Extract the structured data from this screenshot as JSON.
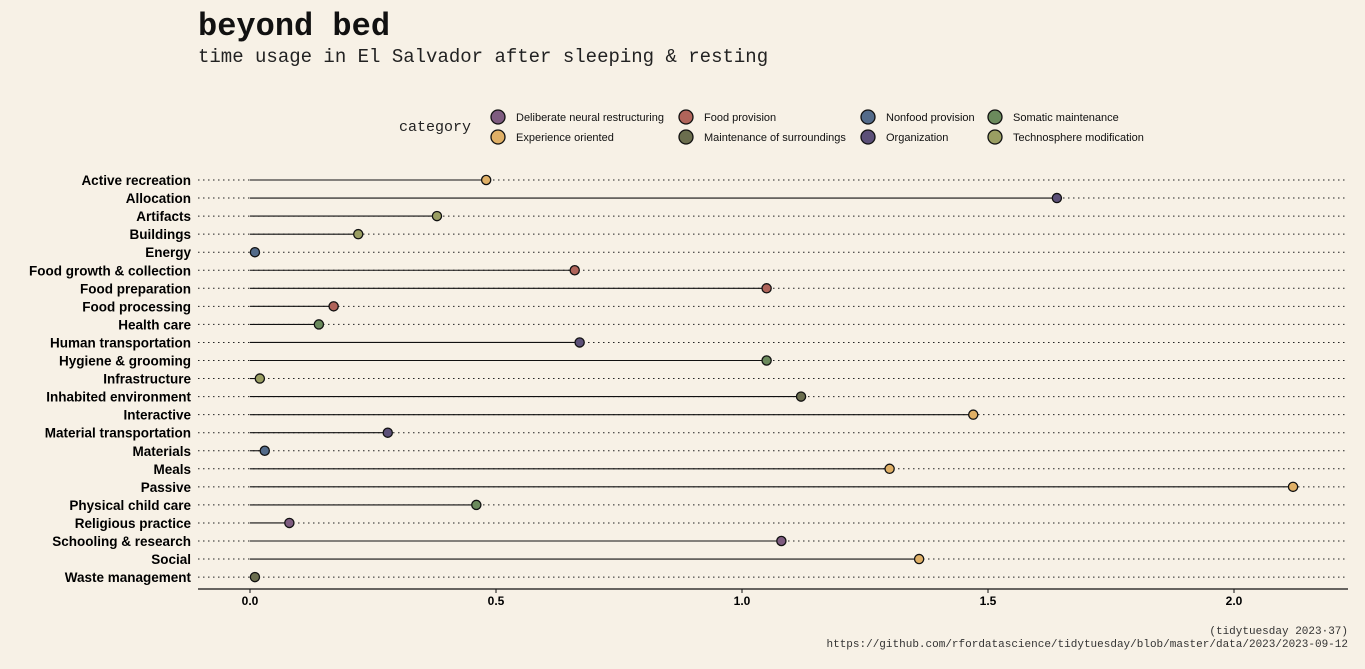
{
  "title": "beyond bed",
  "subtitle": "time usage in El Salvador after sleeping & resting",
  "caption": {
    "line1": "(tidytuesday 2023·37)",
    "line2": "https://github.com/rfordatascience/tidytuesday/blob/master/data/2023/2023-09-12"
  },
  "legend": {
    "title": "category",
    "items": [
      {
        "name": "Deliberate neural restructuring",
        "color": "#7e5c80"
      },
      {
        "name": "Food provision",
        "color": "#b0645a"
      },
      {
        "name": "Nonfood provision",
        "color": "#536b8a"
      },
      {
        "name": "Somatic maintenance",
        "color": "#6b8a5c"
      },
      {
        "name": "Experience oriented",
        "color": "#e0b066"
      },
      {
        "name": "Maintenance of surroundings",
        "color": "#6b6e4e"
      },
      {
        "name": "Organization",
        "color": "#5c5078"
      },
      {
        "name": "Technosphere modification",
        "color": "#9a9e62"
      }
    ]
  },
  "chart_data": {
    "type": "lollipop",
    "xlim": [
      -0.1,
      2.24
    ],
    "xticks": [
      0.0,
      0.5,
      1.0,
      1.5,
      2.0
    ],
    "xtick_labels": [
      "0.0",
      "0.5",
      "1.0",
      "1.5",
      "2.0"
    ],
    "grid": "dotted horizontal",
    "rows": [
      {
        "label": "Active recreation",
        "value": 0.48,
        "category": "Experience oriented"
      },
      {
        "label": "Allocation",
        "value": 1.64,
        "category": "Organization"
      },
      {
        "label": "Artifacts",
        "value": 0.38,
        "category": "Technosphere modification"
      },
      {
        "label": "Buildings",
        "value": 0.22,
        "category": "Technosphere modification"
      },
      {
        "label": "Energy",
        "value": 0.01,
        "category": "Nonfood provision"
      },
      {
        "label": "Food growth & collection",
        "value": 0.66,
        "category": "Food provision"
      },
      {
        "label": "Food preparation",
        "value": 1.05,
        "category": "Food provision"
      },
      {
        "label": "Food processing",
        "value": 0.17,
        "category": "Food provision"
      },
      {
        "label": "Health care",
        "value": 0.14,
        "category": "Somatic maintenance"
      },
      {
        "label": "Human transportation",
        "value": 0.67,
        "category": "Organization"
      },
      {
        "label": "Hygiene & grooming",
        "value": 1.05,
        "category": "Somatic maintenance"
      },
      {
        "label": "Infrastructure",
        "value": 0.02,
        "category": "Technosphere modification"
      },
      {
        "label": "Inhabited environment",
        "value": 1.12,
        "category": "Maintenance of surroundings"
      },
      {
        "label": "Interactive",
        "value": 1.47,
        "category": "Experience oriented"
      },
      {
        "label": "Material transportation",
        "value": 0.28,
        "category": "Organization"
      },
      {
        "label": "Materials",
        "value": 0.03,
        "category": "Nonfood provision"
      },
      {
        "label": "Meals",
        "value": 1.3,
        "category": "Experience oriented"
      },
      {
        "label": "Passive",
        "value": 2.12,
        "category": "Experience oriented"
      },
      {
        "label": "Physical child care",
        "value": 0.46,
        "category": "Somatic maintenance"
      },
      {
        "label": "Religious practice",
        "value": 0.08,
        "category": "Deliberate neural restructuring"
      },
      {
        "label": "Schooling & research",
        "value": 1.08,
        "category": "Deliberate neural restructuring"
      },
      {
        "label": "Social",
        "value": 1.36,
        "category": "Experience oriented"
      },
      {
        "label": "Waste management",
        "value": 0.01,
        "category": "Maintenance of surroundings"
      }
    ]
  }
}
